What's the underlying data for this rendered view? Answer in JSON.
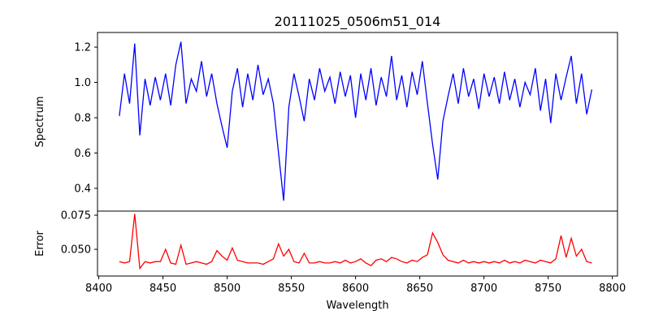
{
  "chart_data": [
    {
      "type": "line",
      "title": "20111025_0506m51_014",
      "xlabel": "",
      "ylabel": "Spectrum",
      "xlim": [
        8399,
        8804
      ],
      "ylim": [
        0.271,
        1.283
      ],
      "yticks": [
        0.4,
        0.6,
        0.8,
        1.0,
        1.2
      ],
      "ytick_labels": [
        "0.4",
        "0.6",
        "0.8",
        "1.0",
        "1.2"
      ],
      "color": "#0000ff",
      "grid": false,
      "x_start": 8416,
      "x_step": 4,
      "values": [
        0.81,
        1.05,
        0.88,
        1.22,
        0.7,
        1.02,
        0.87,
        1.03,
        0.9,
        1.05,
        0.87,
        1.1,
        1.23,
        0.88,
        1.02,
        0.95,
        1.12,
        0.92,
        1.05,
        0.88,
        0.75,
        0.63,
        0.95,
        1.08,
        0.86,
        1.05,
        0.9,
        1.1,
        0.93,
        1.02,
        0.88,
        0.6,
        0.33,
        0.86,
        1.05,
        0.92,
        0.78,
        1.02,
        0.9,
        1.08,
        0.95,
        1.03,
        0.88,
        1.06,
        0.92,
        1.04,
        0.8,
        1.05,
        0.9,
        1.08,
        0.87,
        1.03,
        0.92,
        1.15,
        0.9,
        1.04,
        0.86,
        1.06,
        0.93,
        1.12,
        0.88,
        0.65,
        0.45,
        0.78,
        0.92,
        1.05,
        0.88,
        1.08,
        0.92,
        1.02,
        0.85,
        1.05,
        0.92,
        1.03,
        0.88,
        1.06,
        0.9,
        1.02,
        0.86,
        1.0,
        0.93,
        1.08,
        0.84,
        1.02,
        0.77,
        1.05,
        0.9,
        1.03,
        1.15,
        0.88,
        1.05,
        0.82,
        0.96
      ]
    },
    {
      "type": "line",
      "xlabel": "Wavelength",
      "ylabel": "Error",
      "xlim": [
        8399,
        8804
      ],
      "ylim": [
        0.0304,
        0.078
      ],
      "xticks": [
        8400,
        8450,
        8500,
        8550,
        8600,
        8650,
        8700,
        8750,
        8800
      ],
      "xtick_labels": [
        "8400",
        "8450",
        "8500",
        "8550",
        "8600",
        "8650",
        "8700",
        "8750",
        "8800"
      ],
      "yticks": [
        0.05,
        0.075
      ],
      "ytick_labels": [
        "0.050",
        "0.075"
      ],
      "color": "#ff0000",
      "grid": false,
      "x_start": 8416,
      "x_step": 4,
      "values": [
        0.041,
        0.04,
        0.041,
        0.076,
        0.036,
        0.041,
        0.04,
        0.041,
        0.041,
        0.05,
        0.04,
        0.039,
        0.053,
        0.039,
        0.04,
        0.041,
        0.04,
        0.039,
        0.041,
        0.049,
        0.045,
        0.042,
        0.051,
        0.042,
        0.041,
        0.04,
        0.04,
        0.04,
        0.039,
        0.041,
        0.043,
        0.054,
        0.045,
        0.05,
        0.041,
        0.04,
        0.047,
        0.04,
        0.04,
        0.041,
        0.04,
        0.04,
        0.041,
        0.04,
        0.042,
        0.04,
        0.041,
        0.043,
        0.04,
        0.038,
        0.042,
        0.043,
        0.041,
        0.044,
        0.043,
        0.041,
        0.04,
        0.042,
        0.041,
        0.044,
        0.046,
        0.062,
        0.055,
        0.046,
        0.042,
        0.041,
        0.04,
        0.042,
        0.04,
        0.041,
        0.04,
        0.041,
        0.04,
        0.041,
        0.04,
        0.042,
        0.04,
        0.041,
        0.04,
        0.042,
        0.041,
        0.04,
        0.042,
        0.041,
        0.04,
        0.043,
        0.06,
        0.044,
        0.058,
        0.045,
        0.05,
        0.041,
        0.04
      ]
    }
  ]
}
